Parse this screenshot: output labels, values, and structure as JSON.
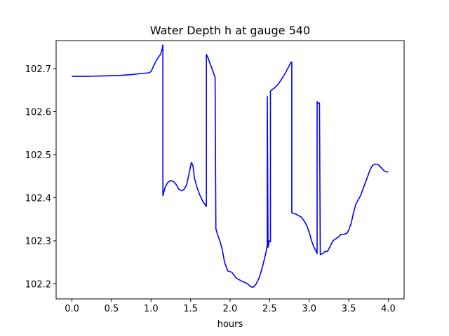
{
  "chart_data": {
    "type": "line",
    "title": "Water Depth h at gauge 540",
    "xlabel": "hours",
    "ylabel": "",
    "xlim": [
      -0.2,
      4.2
    ],
    "ylim": [
      102.165,
      102.765
    ],
    "xticks": [
      0.0,
      0.5,
      1.0,
      1.5,
      2.0,
      2.5,
      3.0,
      3.5,
      4.0
    ],
    "xtick_labels": [
      "0.0",
      "0.5",
      "1.0",
      "1.5",
      "2.0",
      "2.5",
      "3.0",
      "3.5",
      "4.0"
    ],
    "yticks": [
      102.2,
      102.3,
      102.4,
      102.5,
      102.6,
      102.7
    ],
    "ytick_labels": [
      "102.2",
      "102.3",
      "102.4",
      "102.5",
      "102.6",
      "102.7"
    ],
    "grid": false,
    "legend": "none",
    "series": [
      {
        "color": "#0000ff",
        "x": [
          0.0,
          0.2,
          0.4,
          0.6,
          0.75,
          0.9,
          0.97,
          1.0,
          1.03,
          1.07,
          1.12,
          1.14,
          1.15,
          1.15,
          1.18,
          1.21,
          1.25,
          1.29,
          1.32,
          1.35,
          1.39,
          1.42,
          1.45,
          1.48,
          1.51,
          1.53,
          1.55,
          1.58,
          1.62,
          1.66,
          1.7,
          1.7,
          1.72,
          1.75,
          1.78,
          1.81,
          1.82,
          1.84,
          1.87,
          1.9,
          1.93,
          1.97,
          2.02,
          2.05,
          2.08,
          2.12,
          2.15,
          2.19,
          2.22,
          2.25,
          2.28,
          2.3,
          2.33,
          2.37,
          2.41,
          2.45,
          2.47,
          2.47,
          2.48,
          2.49,
          2.49,
          2.51,
          2.51,
          2.56,
          2.6,
          2.64,
          2.7,
          2.77,
          2.78,
          2.78,
          2.83,
          2.87,
          2.9,
          2.94,
          2.97,
          3.0,
          3.03,
          3.06,
          3.09,
          3.1,
          3.1,
          3.11,
          3.13,
          3.14,
          3.14,
          3.17,
          3.2,
          3.23,
          3.26,
          3.3,
          3.34,
          3.38,
          3.4,
          3.44,
          3.48,
          3.5,
          3.53,
          3.56,
          3.59,
          3.62,
          3.65,
          3.68,
          3.71,
          3.74,
          3.77,
          3.8,
          3.83,
          3.86,
          3.89,
          3.92,
          3.95,
          3.98,
          4.0
        ],
        "y": [
          102.682,
          102.682,
          102.683,
          102.684,
          102.686,
          102.689,
          102.69,
          102.693,
          102.705,
          102.72,
          102.733,
          102.745,
          102.755,
          102.405,
          102.425,
          102.435,
          102.44,
          102.437,
          102.43,
          102.42,
          102.416,
          102.42,
          102.43,
          102.455,
          102.482,
          102.475,
          102.445,
          102.425,
          102.405,
          102.39,
          102.38,
          102.733,
          102.725,
          102.71,
          102.695,
          102.68,
          102.328,
          102.315,
          102.3,
          102.28,
          102.25,
          102.23,
          102.227,
          102.22,
          102.213,
          102.209,
          102.206,
          102.203,
          102.2,
          102.195,
          102.192,
          102.193,
          102.2,
          102.215,
          102.24,
          102.27,
          102.29,
          102.635,
          102.285,
          102.295,
          102.3,
          102.298,
          102.648,
          102.655,
          102.662,
          102.672,
          102.69,
          102.715,
          102.715,
          102.365,
          102.362,
          102.358,
          102.355,
          102.345,
          102.335,
          102.32,
          102.3,
          102.285,
          102.275,
          102.27,
          102.623,
          102.62,
          102.62,
          102.268,
          102.268,
          102.27,
          102.275,
          102.275,
          102.285,
          102.3,
          102.305,
          102.31,
          102.315,
          102.315,
          102.318,
          102.325,
          102.34,
          102.365,
          102.385,
          102.395,
          102.405,
          102.42,
          102.435,
          102.45,
          102.465,
          102.475,
          102.478,
          102.478,
          102.474,
          102.468,
          102.462,
          102.46,
          102.46
        ]
      }
    ]
  }
}
